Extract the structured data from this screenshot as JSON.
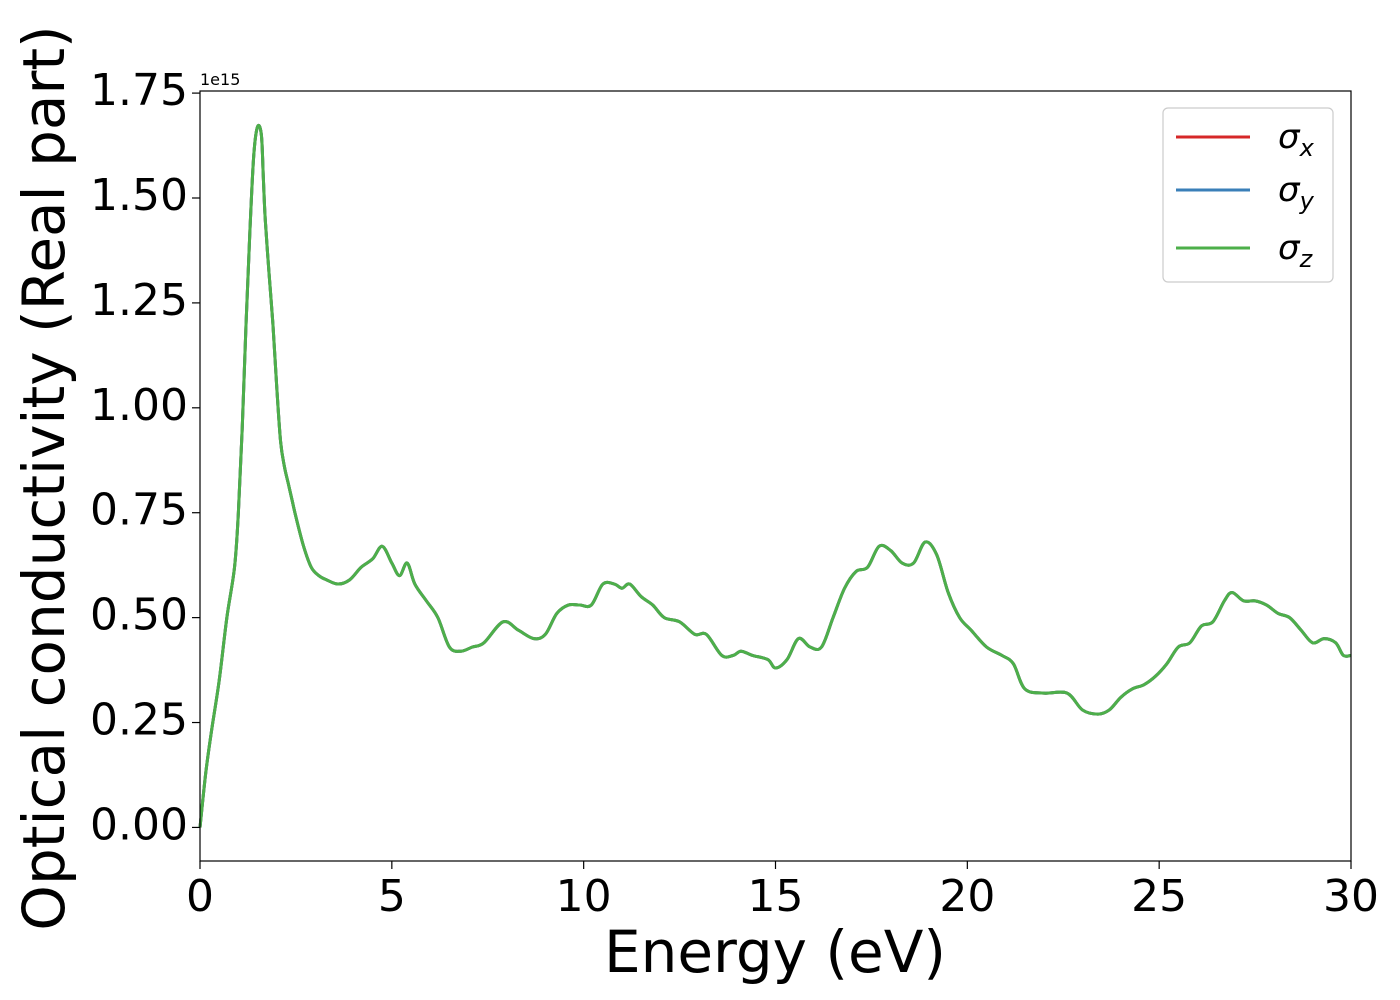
{
  "chart_data": {
    "type": "line",
    "xlabel": "Energy (eV)",
    "ylabel": "Optical conductivity (Real part)",
    "y_offset_label": "1e15",
    "xlim": [
      0,
      30
    ],
    "ylim": [
      -0.08,
      1.755
    ],
    "x_ticks": [
      0,
      5,
      10,
      15,
      20,
      25,
      30
    ],
    "x_tick_labels": [
      "0",
      "5",
      "10",
      "15",
      "20",
      "25",
      "30"
    ],
    "y_ticks": [
      0.0,
      0.25,
      0.5,
      0.75,
      1.0,
      1.25,
      1.5,
      1.75
    ],
    "y_tick_labels": [
      "0.00",
      "0.25",
      "0.50",
      "0.75",
      "1.00",
      "1.25",
      "1.50",
      "1.75"
    ],
    "grid": false,
    "legend_position": "top-right",
    "series": [
      {
        "name": "σx",
        "symbol": "σ",
        "subscript": "x",
        "color": "#d62728"
      },
      {
        "name": "σy",
        "symbol": "σ",
        "subscript": "y",
        "color": "#3a7fb8"
      },
      {
        "name": "σz",
        "symbol": "σ",
        "subscript": "z",
        "color": "#4daf4a"
      }
    ],
    "x": [
      0,
      0.15,
      0.3,
      0.5,
      0.7,
      0.9,
      1.0,
      1.1,
      1.2,
      1.3,
      1.4,
      1.5,
      1.6,
      1.65,
      1.7,
      1.8,
      1.9,
      2.0,
      2.1,
      2.2,
      2.3,
      2.4,
      2.5,
      2.7,
      2.9,
      3.1,
      3.3,
      3.6,
      3.9,
      4.2,
      4.5,
      4.75,
      5.0,
      5.2,
      5.4,
      5.6,
      5.9,
      6.2,
      6.5,
      6.8,
      7.1,
      7.4,
      7.9,
      8.3,
      8.7,
      9.0,
      9.3,
      9.6,
      9.9,
      10.2,
      10.5,
      10.8,
      11.0,
      11.2,
      11.5,
      11.8,
      12.1,
      12.5,
      12.9,
      13.2,
      13.6,
      13.9,
      14.1,
      14.4,
      14.8,
      15.0,
      15.3,
      15.6,
      15.9,
      16.2,
      16.5,
      16.8,
      17.1,
      17.4,
      17.7,
      18.0,
      18.3,
      18.6,
      18.9,
      19.2,
      19.5,
      19.8,
      20.1,
      20.5,
      20.9,
      21.2,
      21.5,
      22.0,
      22.6,
      23.0,
      23.4,
      23.7,
      24.0,
      24.3,
      24.6,
      24.9,
      25.2,
      25.5,
      25.8,
      26.1,
      26.4,
      26.7,
      26.9,
      27.2,
      27.5,
      27.8,
      28.1,
      28.4,
      28.7,
      29.0,
      29.3,
      29.6,
      29.8,
      30.0
    ],
    "y": [
      0.0,
      0.13,
      0.23,
      0.35,
      0.5,
      0.62,
      0.75,
      0.95,
      1.2,
      1.42,
      1.6,
      1.67,
      1.65,
      1.55,
      1.45,
      1.32,
      1.2,
      1.05,
      0.92,
      0.86,
      0.82,
      0.78,
      0.74,
      0.67,
      0.62,
      0.6,
      0.59,
      0.58,
      0.59,
      0.62,
      0.64,
      0.67,
      0.63,
      0.6,
      0.63,
      0.58,
      0.54,
      0.5,
      0.43,
      0.42,
      0.43,
      0.44,
      0.49,
      0.47,
      0.45,
      0.46,
      0.51,
      0.53,
      0.53,
      0.53,
      0.58,
      0.58,
      0.57,
      0.58,
      0.55,
      0.53,
      0.5,
      0.49,
      0.46,
      0.46,
      0.41,
      0.41,
      0.42,
      0.41,
      0.4,
      0.38,
      0.4,
      0.45,
      0.43,
      0.43,
      0.5,
      0.57,
      0.61,
      0.62,
      0.67,
      0.66,
      0.63,
      0.63,
      0.68,
      0.65,
      0.56,
      0.5,
      0.47,
      0.43,
      0.41,
      0.39,
      0.33,
      0.32,
      0.32,
      0.28,
      0.27,
      0.28,
      0.31,
      0.33,
      0.34,
      0.36,
      0.39,
      0.43,
      0.44,
      0.48,
      0.49,
      0.54,
      0.56,
      0.54,
      0.54,
      0.53,
      0.51,
      0.5,
      0.47,
      0.44,
      0.45,
      0.44,
      0.41,
      0.41
    ]
  }
}
